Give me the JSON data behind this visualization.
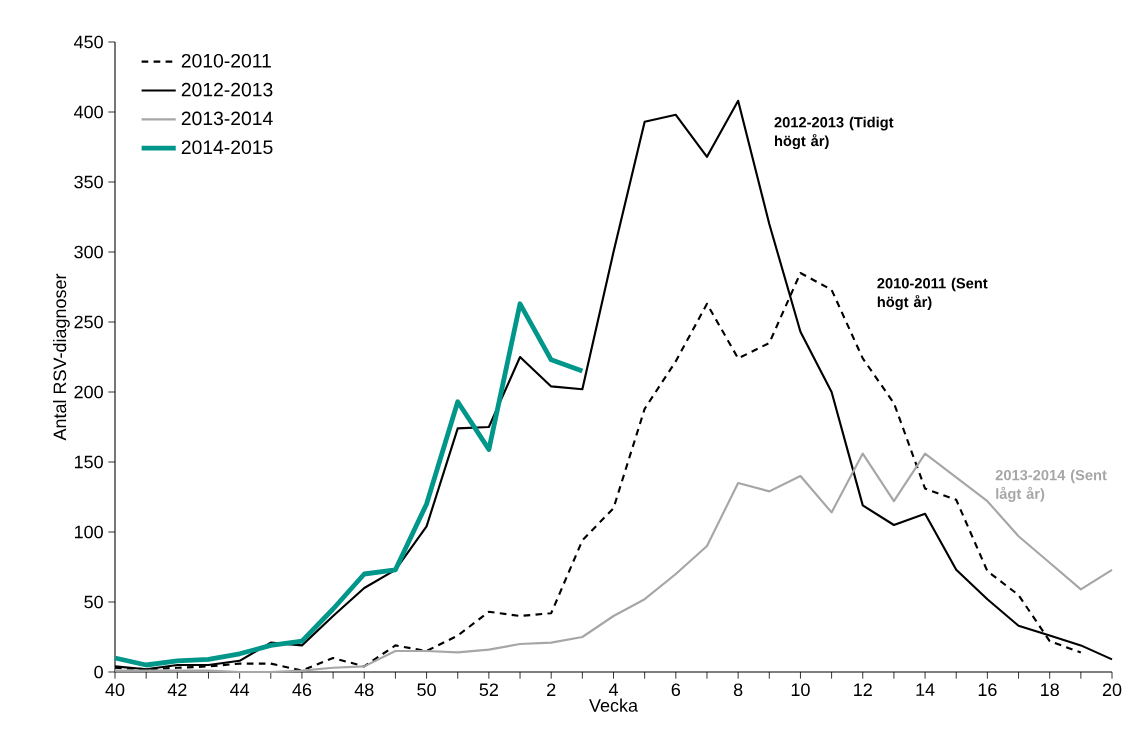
{
  "chart_data": {
    "type": "line",
    "xlabel": "Vecka",
    "ylabel": "Antal RSV-diagnoser",
    "categories": [
      "40",
      null,
      "42",
      null,
      "44",
      null,
      "46",
      null,
      "48",
      null,
      "50",
      null,
      "52",
      null,
      "2",
      null,
      "4",
      null,
      "6",
      null,
      "8",
      null,
      "10",
      null,
      "12",
      null,
      "14",
      null,
      "16",
      null,
      "18",
      null,
      "20"
    ],
    "series": [
      {
        "name": "2010-2011",
        "color": "#000000",
        "line_style": "dashed",
        "values": [
          3,
          2,
          3,
          4,
          6,
          6,
          1,
          10,
          4,
          19,
          15,
          26,
          43,
          40,
          42,
          94,
          117,
          188,
          222,
          263,
          224,
          235,
          285,
          273,
          224,
          192,
          131,
          123,
          72,
          55,
          22,
          14,
          null
        ]
      },
      {
        "name": "2012-2013",
        "color": "#000000",
        "line_style": "solid",
        "values": [
          4,
          2,
          5,
          5,
          8,
          21,
          19,
          40,
          60,
          73,
          104,
          174,
          175,
          225,
          204,
          202,
          300,
          393,
          398,
          368,
          408,
          320,
          243,
          200,
          119,
          105,
          113,
          73,
          52,
          33,
          26,
          19,
          9
        ]
      },
      {
        "name": "2013-2014",
        "color": "#a6a6a6",
        "line_style": "solid",
        "values": [
          1,
          1,
          1,
          1,
          0,
          0,
          1,
          3,
          4,
          15,
          15,
          14,
          16,
          20,
          21,
          25,
          40,
          52,
          70,
          90,
          135,
          129,
          140,
          114,
          156,
          122,
          156,
          139,
          122,
          97,
          78,
          59,
          73
        ]
      },
      {
        "name": "2014-2015",
        "color": "#00968a",
        "line_style": "solid",
        "values": [
          10,
          5,
          8,
          9,
          13,
          19,
          22,
          45,
          70,
          73,
          120,
          193,
          159,
          263,
          223,
          215,
          null,
          null,
          null,
          null,
          null,
          null,
          null,
          null,
          null,
          null,
          null,
          null,
          null,
          null,
          null,
          null,
          null
        ]
      }
    ],
    "annotations": [
      "2012-2013 (Tidigt högt år)",
      "2010-2011 (Sent högt år)",
      "2013-2014 (Sent lågt år)"
    ],
    "ylim": [
      0,
      450
    ],
    "yticks": [
      0,
      50,
      100,
      150,
      200,
      250,
      300,
      350,
      400,
      450
    ],
    "grid": false,
    "legend": "top left",
    "marker": "none"
  }
}
